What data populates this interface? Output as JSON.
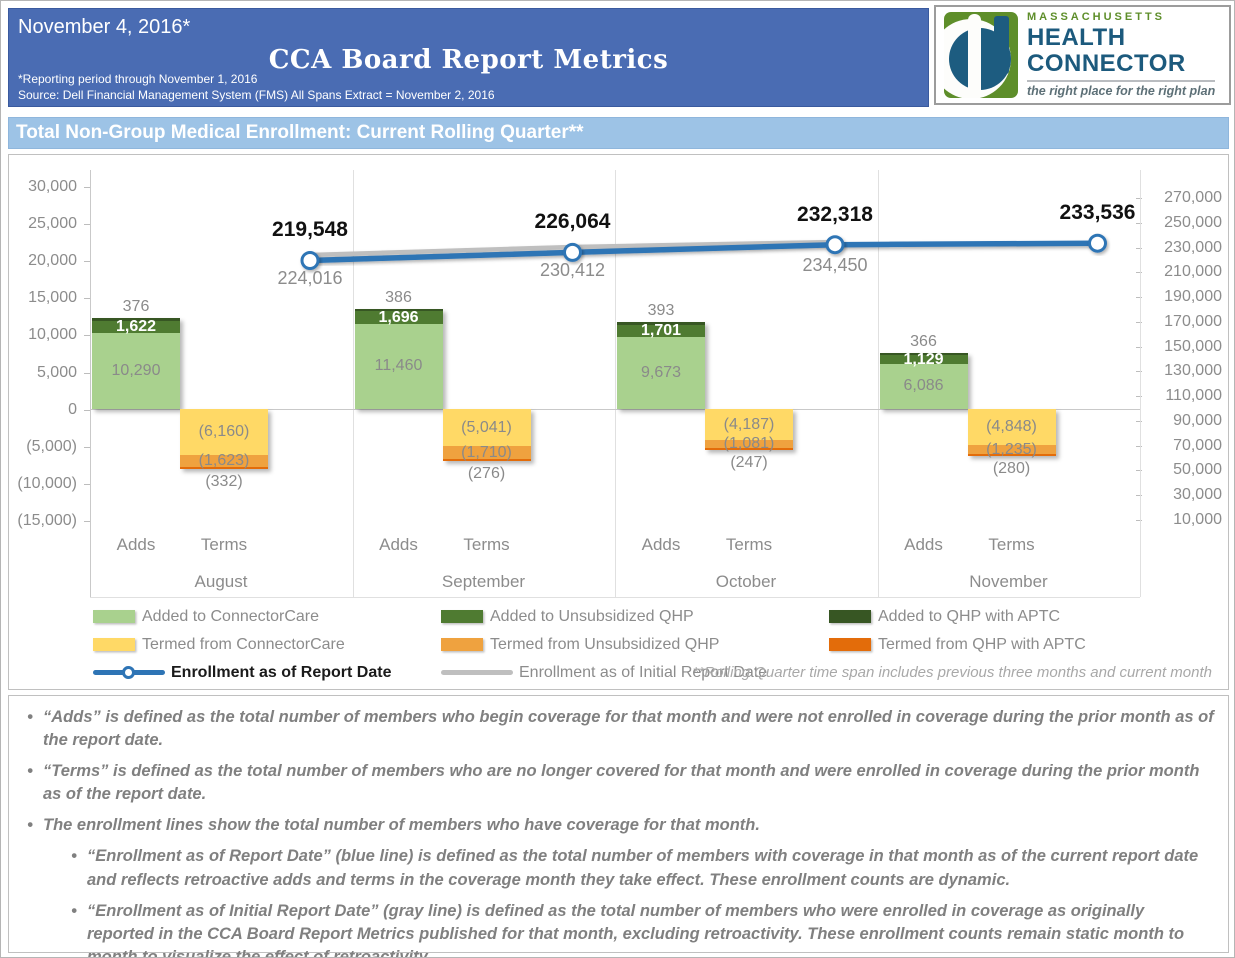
{
  "header": {
    "date": "November 4, 2016*",
    "title": "CCA Board Report Metrics",
    "note1": "*Reporting period through November 1, 2016",
    "note2": "Source: Dell Financial Management System (FMS) All Spans Extract = November 2, 2016"
  },
  "logo": {
    "massachusetts": "MASSACHUSETTS",
    "health": "HEALTH",
    "connector": "CONNECTOR",
    "tagline": "the right place for the right plan"
  },
  "section": {
    "title": "Total Non-Group Medical Enrollment: Current Rolling Quarter**"
  },
  "chart_data": {
    "type": "combo-stacked-bar-line",
    "categories": [
      "August",
      "September",
      "October",
      "November"
    ],
    "category_sublabels": [
      "Adds",
      "Terms"
    ],
    "bar_series": [
      {
        "name": "Added to ConnectorCare",
        "group": "adds",
        "color_key": "light_green",
        "label_pos": "inside",
        "label_color": "gray",
        "values": [
          10290,
          11460,
          9673,
          6086
        ]
      },
      {
        "name": "Added to Unsubsidized QHP",
        "group": "adds",
        "color_key": "mid_green",
        "label_pos": "inside",
        "label_color": "white",
        "values": [
          1622,
          1696,
          1701,
          1129
        ]
      },
      {
        "name": "Added to QHP with APTC",
        "group": "adds",
        "color_key": "dark_green",
        "label_pos": "outside",
        "label_color": "gray",
        "values": [
          376,
          386,
          393,
          366
        ]
      },
      {
        "name": "Termed from ConnectorCare",
        "group": "terms",
        "color_key": "yellow",
        "label_pos": "inside",
        "label_color": "gray",
        "values": [
          -6160,
          -5041,
          -4187,
          -4848
        ]
      },
      {
        "name": "Termed from Unsubsidized QHP",
        "group": "terms",
        "color_key": "orange",
        "label_pos": "inside",
        "label_color": "gray",
        "values": [
          -1623,
          -1710,
          -1081,
          -1235
        ]
      },
      {
        "name": "Termed from QHP with APTC",
        "group": "terms",
        "color_key": "dark_orange",
        "label_pos": "outside",
        "label_color": "gray",
        "values": [
          -332,
          -276,
          -247,
          -280
        ]
      }
    ],
    "line_series": [
      {
        "name": "Enrollment as of Report Date",
        "color_key": "blue_line",
        "label_style": "dark",
        "values": [
          219548,
          226064,
          232318,
          233536
        ]
      },
      {
        "name": "Enrollment as of Initial Report Date",
        "color_key": "gray_line",
        "label_style": "gray",
        "values": [
          224016,
          230412,
          234450,
          null
        ]
      }
    ],
    "left_axis": {
      "min": -15000,
      "max": 30000,
      "step": 5000,
      "ticks": [
        "30,000",
        "25,000",
        "20,000",
        "15,000",
        "10,000",
        "5,000",
        "0",
        "(5,000)",
        "(10,000)",
        "(15,000)"
      ]
    },
    "right_axis": {
      "min": 10000,
      "max": 270000,
      "step": 20000,
      "ticks": [
        "270,000",
        "250,000",
        "230,000",
        "210,000",
        "190,000",
        "170,000",
        "150,000",
        "130,000",
        "110,000",
        "90,000",
        "70,000",
        "50,000",
        "30,000",
        "10,000"
      ]
    },
    "legend_note": "**Rolling Quarter time span includes previous three months and current month",
    "grid": "vertical category separators + zero line only",
    "legend_position": "bottom"
  },
  "colors": {
    "light_green": "#A9D18E",
    "mid_green": "#4F7B31",
    "dark_green": "#375623",
    "yellow": "#FFD966",
    "orange": "#EFA23F",
    "dark_orange": "#E36C0A",
    "blue_line": "#2E74B5",
    "gray_line": "#BFBFBF",
    "header_bg": "#4A6CB3",
    "section_bg": "#9DC3E6"
  },
  "footnotes": [
    {
      "level": 1,
      "text": "“Adds” is defined as the total number of members who begin coverage for that month and were not enrolled in coverage during the prior month as of the report date."
    },
    {
      "level": 1,
      "text": "“Terms” is defined as the total number of members who are no longer covered for that month and were enrolled in coverage during the prior month as of the report date."
    },
    {
      "level": 1,
      "text": "The enrollment lines show the total number of members who have coverage for that month."
    },
    {
      "level": 2,
      "text": "“Enrollment as of Report Date” (blue line) is defined as the total number of members with coverage in that month as of the current report date and reflects retroactive adds and terms in the coverage month they take effect. These enrollment counts are dynamic."
    },
    {
      "level": 2,
      "text": "“Enrollment as of Initial Report Date” (gray line) is defined as the total number of members who were enrolled in coverage as originally reported in the CCA Board Report Metrics published for that month, excluding retroactivity. These enrollment counts remain static month to month to visualize the effect of retroactivity."
    }
  ]
}
